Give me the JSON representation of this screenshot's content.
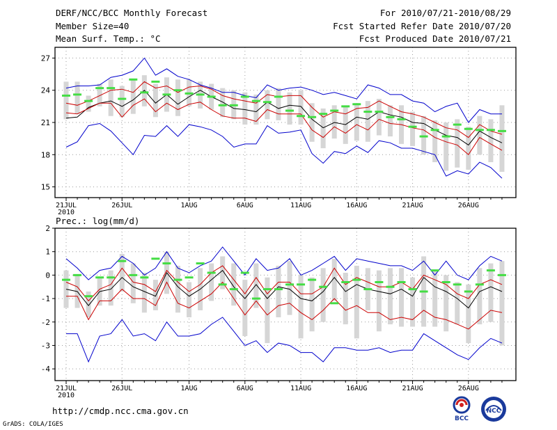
{
  "header": {
    "title": "DERF/NCC/BCC Monthly Forecast",
    "member_size": "Member Size=40",
    "variable": "Mean Surf. Temp.: °C",
    "period": "For 2010/07/21-2010/08/29",
    "refer_date": "Fcst Started Refer Date 2010/07/20",
    "produced_date": "Fcst Produced Date 2010/07/21"
  },
  "footer": {
    "url": "http://cmdp.ncc.cma.gov.cn",
    "credit": "GrADS: COLA/IGES",
    "logo_bcc": "BCC",
    "logo_ncc": "NCC"
  },
  "colors": {
    "blue": "#0000cc",
    "red": "#cc0000",
    "black": "#000000",
    "green": "#44dd44",
    "gray": "#d6d6d6"
  },
  "chart_data": [
    {
      "type": "line",
      "title": "Mean Surf. Temp.: °C",
      "x_tick_labels": [
        "21JUL",
        "26JUL",
        "1AUG",
        "6AUG",
        "11AUG",
        "16AUG",
        "21AUG",
        "26AUG"
      ],
      "x_tick_days": [
        0,
        5,
        11,
        16,
        21,
        26,
        31,
        36
      ],
      "x_sublabel": "2010",
      "ylim": [
        14,
        28
      ],
      "yticks": [
        15,
        18,
        21,
        24,
        27
      ],
      "series": [
        {
          "name": "max",
          "color": "blue",
          "values": [
            24.2,
            24.4,
            24.4,
            24.5,
            25.2,
            25.4,
            25.8,
            27.0,
            25.4,
            26.0,
            25.3,
            25.0,
            24.5,
            24.2,
            23.8,
            23.8,
            23.5,
            23.3,
            24.5,
            24.0,
            24.2,
            24.3,
            24.0,
            23.6,
            23.8,
            23.5,
            23.2,
            24.5,
            24.2,
            23.6,
            23.6,
            23.0,
            22.8,
            22.0,
            22.5,
            22.8,
            21.0,
            22.2,
            21.8,
            21.8
          ]
        },
        {
          "name": "upper",
          "color": "red",
          "values": [
            22.8,
            22.6,
            23.0,
            23.5,
            24.0,
            24.1,
            23.8,
            24.8,
            24.2,
            24.4,
            23.8,
            24.3,
            24.4,
            24.1,
            23.5,
            23.2,
            23.0,
            22.8,
            23.6,
            23.4,
            23.5,
            23.5,
            22.4,
            21.5,
            22.0,
            21.8,
            22.3,
            22.4,
            23.0,
            22.5,
            22.0,
            21.8,
            21.5,
            21.0,
            20.5,
            20.3,
            19.6,
            20.8,
            20.2,
            19.9
          ]
        },
        {
          "name": "mean",
          "color": "black",
          "values": [
            21.4,
            21.5,
            22.4,
            22.8,
            23.0,
            22.5,
            23.1,
            24.0,
            22.8,
            23.6,
            22.7,
            23.4,
            24.0,
            23.4,
            22.9,
            22.3,
            22.2,
            22.0,
            22.9,
            22.3,
            22.6,
            22.5,
            21.3,
            20.5,
            21.0,
            20.8,
            21.5,
            21.3,
            22.0,
            21.7,
            21.5,
            21.0,
            20.9,
            20.3,
            19.8,
            19.6,
            18.9,
            20.2,
            19.6,
            19.1
          ]
        },
        {
          "name": "lower",
          "color": "red",
          "values": [
            21.9,
            21.8,
            22.3,
            22.8,
            22.8,
            21.5,
            22.6,
            23.2,
            22.0,
            22.8,
            22.2,
            22.7,
            22.9,
            22.2,
            21.6,
            21.4,
            21.4,
            21.1,
            22.2,
            21.8,
            21.8,
            21.8,
            20.3,
            19.6,
            20.6,
            20.0,
            20.8,
            20.3,
            21.3,
            20.9,
            20.8,
            20.5,
            20.3,
            19.6,
            19.2,
            18.9,
            18.0,
            19.6,
            19.0,
            18.4
          ]
        },
        {
          "name": "min",
          "color": "blue",
          "values": [
            18.7,
            19.2,
            20.7,
            20.9,
            20.2,
            19.1,
            18.0,
            19.8,
            19.7,
            20.7,
            19.7,
            20.8,
            20.6,
            20.3,
            19.7,
            18.7,
            19.0,
            19.0,
            20.7,
            20.0,
            20.1,
            20.3,
            18.1,
            17.2,
            18.3,
            18.1,
            18.8,
            18.2,
            19.3,
            19.1,
            18.6,
            18.6,
            18.3,
            18.0,
            16.0,
            16.5,
            16.2,
            17.3,
            16.8,
            15.8
          ]
        }
      ],
      "ensemble_bars": {
        "top": [
          24.8,
          24.8,
          23.5,
          24.6,
          25.0,
          24.4,
          25.0,
          25.4,
          24.6,
          25.2,
          25.0,
          25.0,
          24.8,
          24.6,
          24.2,
          24.0,
          23.8,
          23.6,
          24.0,
          24.2,
          23.8,
          24.0,
          22.8,
          22.3,
          22.6,
          22.5,
          22.8,
          23.0,
          23.2,
          22.6,
          22.6,
          22.0,
          21.6,
          21.2,
          21.0,
          21.3,
          20.6,
          21.6,
          21.3,
          22.6
        ],
        "bottom": [
          21.3,
          21.8,
          22.0,
          22.5,
          21.6,
          21.5,
          21.8,
          22.5,
          21.5,
          22.0,
          21.6,
          22.5,
          22.3,
          22.2,
          21.5,
          21.3,
          20.8,
          20.8,
          21.3,
          21.2,
          20.8,
          20.8,
          19.2,
          18.6,
          19.5,
          19.0,
          19.3,
          19.2,
          19.8,
          19.7,
          19.0,
          18.8,
          18.0,
          17.3,
          16.5,
          16.8,
          16.6,
          18.0,
          17.3,
          16.4
        ]
      },
      "observation_marks": [
        23.5,
        23.6,
        23.0,
        24.2,
        24.2,
        23.2,
        25.0,
        23.8,
        24.8,
        23.6,
        24.0,
        23.7,
        23.6,
        23.4,
        22.6,
        22.6,
        23.4,
        23.0,
        22.9,
        23.4,
        22.1,
        21.6,
        21.5,
        21.8,
        22.1,
        22.5,
        22.7,
        22.0,
        22.0,
        21.5,
        21.3,
        20.6,
        19.7,
        20.3,
        19.7,
        20.8,
        20.4,
        20.3,
        20.3,
        20.2
      ]
    },
    {
      "type": "line",
      "title": "Prec.: log(mm/d)",
      "x_tick_labels": [
        "21JUL",
        "26JUL",
        "1AUG",
        "6AUG",
        "11AUG",
        "16AUG",
        "21AUG",
        "26AUG"
      ],
      "x_tick_days": [
        0,
        5,
        11,
        16,
        21,
        26,
        31,
        36
      ],
      "x_sublabel": "2010",
      "ylim": [
        -4.5,
        2
      ],
      "yticks": [
        -4,
        -3,
        -2,
        -1,
        0,
        1,
        2
      ],
      "series": [
        {
          "name": "max",
          "color": "blue",
          "values": [
            0.7,
            0.3,
            -0.2,
            0.2,
            0.3,
            0.8,
            0.5,
            0.0,
            0.3,
            1.0,
            0.3,
            0.1,
            0.4,
            0.6,
            1.2,
            0.6,
            0.0,
            0.7,
            0.2,
            0.3,
            0.7,
            0.0,
            0.2,
            0.5,
            0.8,
            0.2,
            0.7,
            0.6,
            0.5,
            0.4,
            0.4,
            0.2,
            0.6,
            0.0,
            0.6,
            0.0,
            -0.2,
            0.4,
            0.8,
            0.6
          ]
        },
        {
          "name": "upper",
          "color": "red",
          "values": [
            -0.3,
            -0.5,
            -1.1,
            -0.6,
            -0.4,
            0.3,
            -0.3,
            -0.4,
            -0.7,
            0.2,
            -0.3,
            -0.7,
            -0.4,
            0.1,
            0.4,
            -0.2,
            -0.8,
            -0.1,
            -0.8,
            -0.3,
            -0.3,
            -0.8,
            -0.8,
            -0.5,
            0.3,
            -0.4,
            -0.1,
            -0.3,
            -0.5,
            -0.5,
            -0.3,
            -0.6,
            0.0,
            -0.2,
            -0.4,
            -0.8,
            -1.0,
            -0.4,
            -0.2,
            -0.4
          ]
        },
        {
          "name": "mean",
          "color": "black",
          "values": [
            -0.6,
            -0.7,
            -1.3,
            -0.7,
            -0.6,
            -0.1,
            -0.5,
            -0.7,
            -0.9,
            0.1,
            -0.5,
            -0.9,
            -0.6,
            -0.2,
            0.2,
            -0.5,
            -1.0,
            -0.4,
            -1.0,
            -0.5,
            -0.6,
            -1.0,
            -1.1,
            -0.7,
            -0.1,
            -0.7,
            -0.4,
            -0.6,
            -0.7,
            -0.8,
            -0.6,
            -0.9,
            -0.1,
            -0.5,
            -0.7,
            -1.0,
            -1.4,
            -0.7,
            -0.5,
            -0.7
          ]
        },
        {
          "name": "lower",
          "color": "red",
          "values": [
            -0.9,
            -0.9,
            -1.9,
            -1.1,
            -1.1,
            -0.6,
            -1.0,
            -1.0,
            -1.3,
            -0.3,
            -1.2,
            -1.4,
            -1.1,
            -0.8,
            -0.3,
            -1.0,
            -1.7,
            -1.1,
            -1.7,
            -1.3,
            -1.2,
            -1.6,
            -1.9,
            -1.5,
            -1.0,
            -1.5,
            -1.3,
            -1.6,
            -1.6,
            -1.9,
            -1.8,
            -1.9,
            -1.5,
            -1.8,
            -1.9,
            -2.1,
            -2.3,
            -1.9,
            -1.5,
            -1.6
          ]
        },
        {
          "name": "min",
          "color": "blue",
          "values": [
            -2.5,
            -2.5,
            -3.7,
            -2.6,
            -2.5,
            -1.9,
            -2.6,
            -2.5,
            -2.8,
            -2.0,
            -2.6,
            -2.6,
            -2.5,
            -2.1,
            -1.8,
            -2.4,
            -3.0,
            -2.8,
            -3.3,
            -2.9,
            -3.0,
            -3.3,
            -3.3,
            -3.7,
            -3.1,
            -3.1,
            -3.2,
            -3.2,
            -3.1,
            -3.3,
            -3.2,
            -3.2,
            -2.5,
            -2.8,
            -3.1,
            -3.4,
            -3.6,
            -3.1,
            -2.7,
            -2.9
          ]
        }
      ],
      "ensemble_bars": {
        "top": [
          0.2,
          0.0,
          -0.7,
          -0.1,
          0.2,
          0.9,
          0.5,
          0.1,
          -0.2,
          1.0,
          0.4,
          -0.3,
          0.3,
          0.5,
          0.8,
          0.5,
          -0.2,
          0.5,
          -0.1,
          0.4,
          0.6,
          0.0,
          -0.1,
          0.3,
          0.7,
          0.1,
          0.4,
          0.3,
          0.2,
          0.3,
          0.3,
          -0.1,
          0.8,
          0.2,
          0.0,
          -0.3,
          -0.4,
          0.3,
          0.5,
          0.6
        ],
        "bottom": [
          -1.4,
          -1.4,
          -1.8,
          -1.3,
          -1.3,
          -0.7,
          -1.2,
          -1.6,
          -1.5,
          -0.8,
          -1.6,
          -1.8,
          -1.5,
          -1.1,
          -0.6,
          -1.3,
          -2.6,
          -1.4,
          -2.9,
          -1.8,
          -1.7,
          -2.7,
          -2.4,
          -2.0,
          -1.1,
          -2.1,
          -2.7,
          -1.5,
          -2.4,
          -2.1,
          -2.2,
          -2.2,
          -2.2,
          -2.2,
          -2.4,
          -2.1,
          -2.9,
          -2.1,
          -2.0,
          -3.0
        ]
      },
      "observation_marks": [
        -0.2,
        0.0,
        -0.9,
        -0.1,
        -0.1,
        0.6,
        0.0,
        -0.1,
        0.7,
        0.5,
        -0.2,
        -0.1,
        0.5,
        0.1,
        -0.4,
        -0.6,
        0.1,
        -1.0,
        -0.6,
        -0.6,
        -0.4,
        -0.4,
        -0.2,
        -0.5,
        -1.2,
        -0.3,
        -0.2,
        -0.6,
        -0.3,
        -0.5,
        -0.3,
        -0.6,
        -0.7,
        0.2,
        -0.3,
        -0.4,
        -0.7,
        -0.4,
        0.2,
        0.0
      ]
    }
  ]
}
